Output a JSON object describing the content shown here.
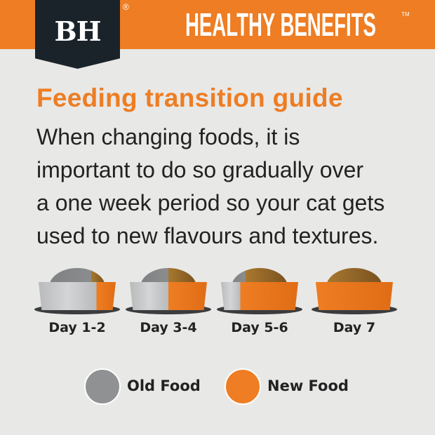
{
  "header": {
    "logo_text": "BH",
    "registered_mark": "®",
    "brand_title": "HEALTHY BENEFITS",
    "trademark": "TM"
  },
  "title": "Feeding transition guide",
  "body_lines": [
    "When changing foods, it is",
    "important to do so gradually over",
    "a one week period so your cat gets",
    "used to new flavours and textures."
  ],
  "schedule": [
    {
      "label": "Day 1-2",
      "new_food_fraction": 0.25
    },
    {
      "label": "Day 3-4",
      "new_food_fraction": 0.5
    },
    {
      "label": "Day 5-6",
      "new_food_fraction": 0.75
    },
    {
      "label": "Day 7",
      "new_food_fraction": 1.0
    }
  ],
  "legend": [
    {
      "label": "Old Food",
      "color": "#8f9193"
    },
    {
      "label": "New Food",
      "color": "#ee7d23"
    }
  ],
  "colors": {
    "accent": "#ee7d23",
    "dark": "#1b232a",
    "old_bowl": "#b9babb",
    "new_bowl": "#ee7d23"
  }
}
